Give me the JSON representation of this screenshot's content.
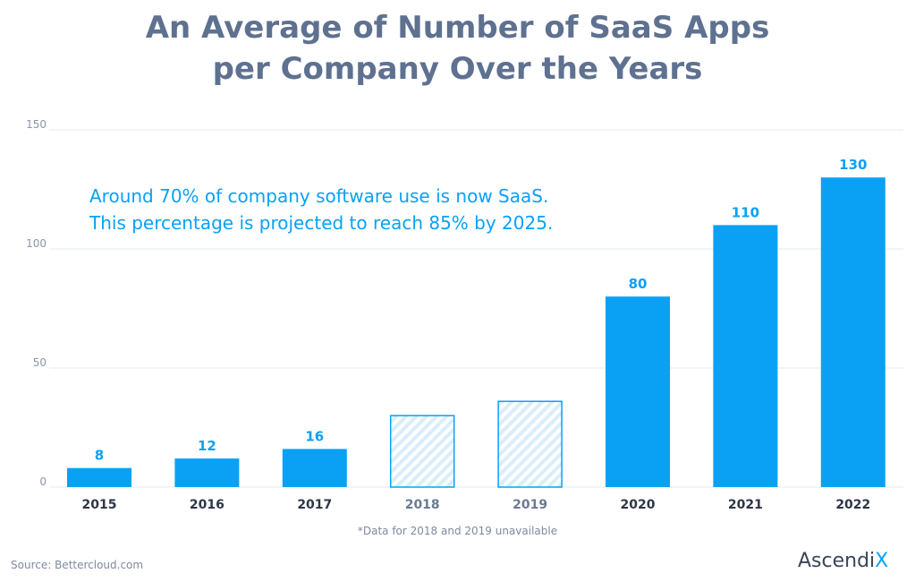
{
  "title_lines": [
    "An Average of Number of SaaS Apps",
    "per Company Over the Years"
  ],
  "note_lines": [
    "Around 70% of company software use is now SaaS.",
    "This percentage is projected to reach 85% by 2025."
  ],
  "footnote": "*Data for 2018 and 2019 unavailable",
  "source": "Source:  Bettercloud.com",
  "logo": {
    "text": "Ascendi",
    "accent": "X"
  },
  "colors": {
    "bar": "#0aa1f5",
    "hatched_fill": "#d9edfc",
    "title": "#5f7190",
    "grid": "#e6ebf0"
  },
  "chart_data": {
    "type": "bar",
    "categories": [
      "2015",
      "2016",
      "2017",
      "2018",
      "2019",
      "2020",
      "2021",
      "2022"
    ],
    "values": [
      8,
      12,
      16,
      null,
      null,
      80,
      110,
      130
    ],
    "data_labels": [
      "8",
      "12",
      "16",
      "",
      "",
      "80",
      "110",
      "130"
    ],
    "unavailable_placeholder_values": {
      "2018": 30,
      "2019": 36
    },
    "ylim": [
      0,
      150
    ],
    "yticks": [
      "0",
      "50",
      "100",
      "150"
    ],
    "grid": true,
    "xlabel": "",
    "ylabel": ""
  }
}
